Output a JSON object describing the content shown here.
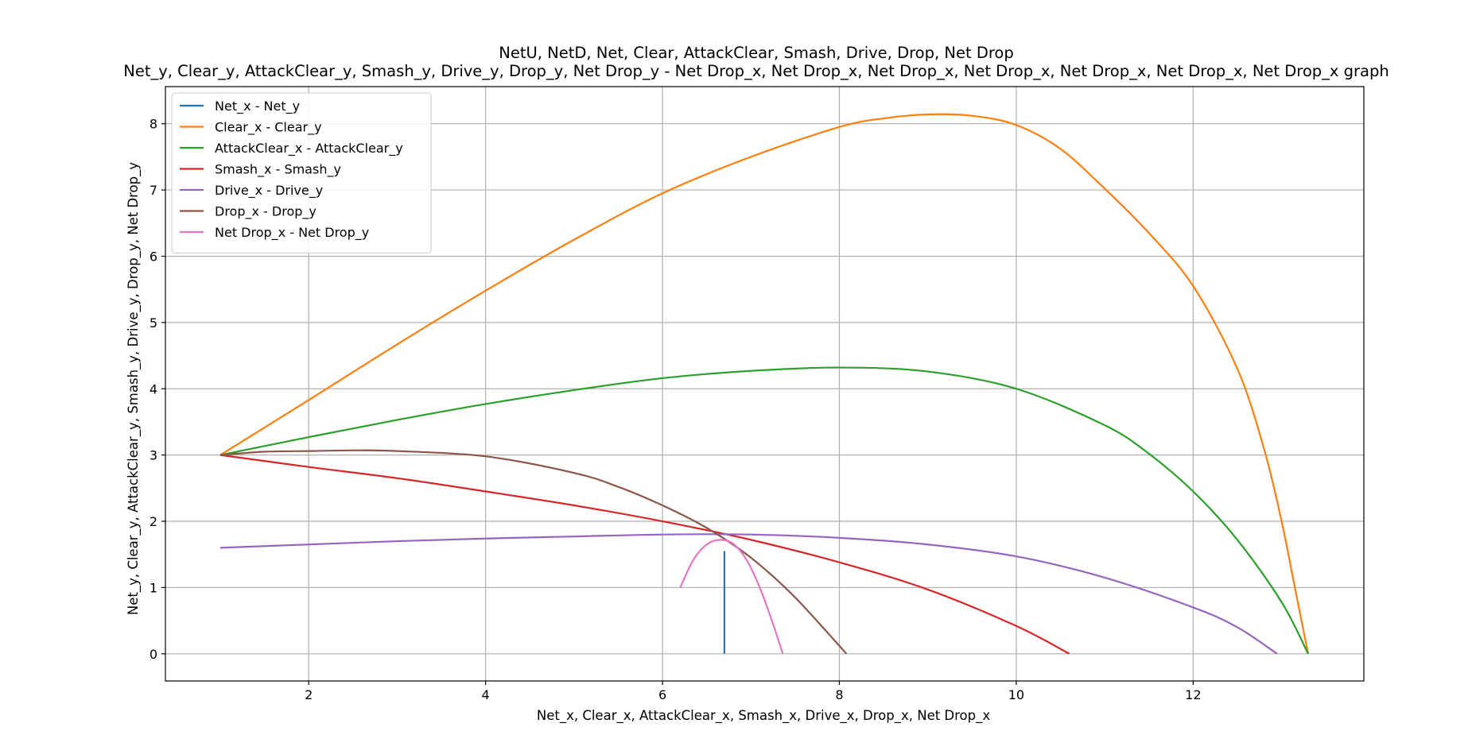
{
  "chart_data": {
    "type": "line",
    "title": "NetU, NetD, Net, Clear, AttackClear, Smash, Drive, Drop, Net Drop",
    "subtitle": "Net_y, Clear_y, AttackClear_y, Smash_y, Drive_y, Drop_y, Net Drop_y - Net Drop_x, Net Drop_x, Net Drop_x, Net Drop_x, Net Drop_x, Net Drop_x, Net Drop_x graph",
    "xlabel": "Net_x, Clear_x, AttackClear_x, Smash_x, Drive_x, Drop_x, Net Drop_x",
    "ylabel": "Net_y, Clear_y, AttackClear_y, Smash_y, Drive_y, Drop_y, Net Drop_y",
    "xlim": [
      0.38,
      13.93
    ],
    "ylim": [
      -0.41,
      8.56
    ],
    "xticks": [
      2,
      4,
      6,
      8,
      10,
      12
    ],
    "yticks": [
      0,
      1,
      2,
      3,
      4,
      5,
      6,
      7,
      8
    ],
    "grid": true,
    "legend_position": "upper left",
    "series": [
      {
        "name": "Net_x - Net_y",
        "color": "#1f77b4",
        "x": [
          6.7,
          6.7
        ],
        "y": [
          0,
          1.55
        ]
      },
      {
        "name": "Clear_x - Clear_y",
        "color": "#ff7f0e",
        "x": [
          1.0,
          2.0,
          3.0,
          4.0,
          5.0,
          6.0,
          7.0,
          8.0,
          8.5,
          9.0,
          9.5,
          10.0,
          10.5,
          11.0,
          11.5,
          12.0,
          12.5,
          12.8,
          13.0,
          13.15,
          13.3
        ],
        "y": [
          3.0,
          3.83,
          4.67,
          5.48,
          6.25,
          6.95,
          7.5,
          7.95,
          8.08,
          8.14,
          8.12,
          7.98,
          7.62,
          7.02,
          6.35,
          5.55,
          4.3,
          3.1,
          2.0,
          1.0,
          0.0
        ]
      },
      {
        "name": "AttackClear_x - AttackClear_y",
        "color": "#2ca02c",
        "x": [
          1.0,
          2.0,
          3.0,
          4.0,
          5.0,
          6.0,
          7.0,
          8.0,
          9.0,
          10.0,
          11.0,
          11.5,
          12.0,
          12.5,
          13.0,
          13.3
        ],
        "y": [
          3.0,
          3.27,
          3.53,
          3.77,
          3.98,
          4.16,
          4.27,
          4.32,
          4.26,
          4.0,
          3.45,
          3.02,
          2.45,
          1.72,
          0.78,
          0.0
        ]
      },
      {
        "name": "Smash_x - Smash_y",
        "color": "#d62728",
        "x": [
          1.0,
          2.0,
          3.0,
          4.0,
          5.0,
          6.0,
          7.0,
          8.0,
          9.0,
          10.0,
          10.6
        ],
        "y": [
          3.0,
          2.82,
          2.65,
          2.45,
          2.24,
          2.0,
          1.72,
          1.38,
          0.97,
          0.42,
          0.0
        ]
      },
      {
        "name": "Drive_x - Drive_y",
        "color": "#9467bd",
        "x": [
          1.0,
          2.0,
          3.0,
          4.0,
          5.0,
          6.0,
          7.0,
          8.0,
          9.0,
          10.0,
          11.0,
          12.0,
          12.5,
          12.95
        ],
        "y": [
          1.6,
          1.65,
          1.7,
          1.74,
          1.77,
          1.8,
          1.8,
          1.75,
          1.65,
          1.47,
          1.15,
          0.7,
          0.4,
          0.0
        ]
      },
      {
        "name": "Drop_x - Drop_y",
        "color": "#8c564b",
        "x": [
          1.0,
          1.5,
          2.0,
          2.5,
          3.0,
          4.0,
          5.0,
          5.5,
          6.0,
          6.5,
          7.0,
          7.5,
          8.08
        ],
        "y": [
          3.0,
          3.05,
          3.06,
          3.07,
          3.06,
          2.98,
          2.73,
          2.52,
          2.24,
          1.9,
          1.45,
          0.85,
          0.0
        ]
      },
      {
        "name": "Net Drop_x - Net Drop_y",
        "color": "#e377c2",
        "x": [
          6.2,
          6.35,
          6.5,
          6.65,
          6.8,
          6.95,
          7.1,
          7.25,
          7.36
        ],
        "y": [
          1.0,
          1.42,
          1.65,
          1.72,
          1.66,
          1.42,
          1.0,
          0.45,
          0.0
        ]
      }
    ]
  }
}
